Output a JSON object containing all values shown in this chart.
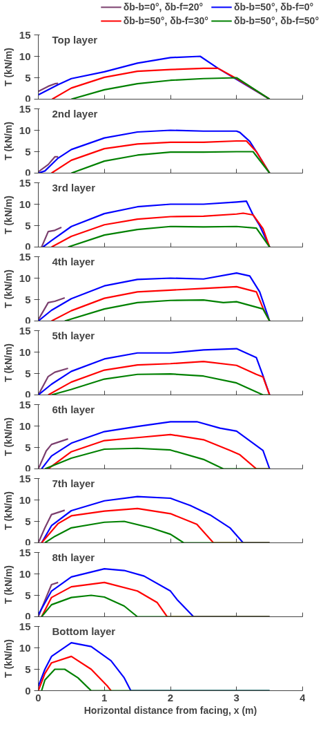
{
  "chart_data": [
    {
      "type": "line",
      "title": "Top layer",
      "ylabel": "T (kN/m)",
      "xlim": [
        0,
        4
      ],
      "ylim": [
        0,
        15
      ],
      "xticks": [
        0,
        1,
        2,
        3,
        4
      ],
      "yticks": [
        0,
        5,
        10,
        15
      ],
      "tick_labels": "y",
      "legend": "top",
      "series": [
        {
          "name": "δb-b=0°, δb-f=20°",
          "color": "#7b3f6e",
          "x": [
            0,
            0.15,
            0.25,
            0.3
          ],
          "values": [
            1.8,
            3,
            3.6,
            3.7
          ]
        },
        {
          "name": "δb-b=50°, δb-f=0°",
          "color": "#0000ff",
          "x": [
            0,
            0.3,
            0.5,
            1,
            1.5,
            2,
            2.45,
            2.72,
            3.5
          ],
          "values": [
            1,
            3.4,
            4.8,
            6.4,
            8.4,
            9.7,
            10,
            7.2,
            0
          ]
        },
        {
          "name": "δb-b=50°, δb-f=30°",
          "color": "#ff0000",
          "x": [
            0.21,
            0.5,
            1,
            1.5,
            2,
            2.5,
            2.72,
            3.0,
            3.5
          ],
          "values": [
            0,
            2.6,
            5.1,
            6.5,
            6.9,
            7.2,
            7.2,
            4.8,
            0
          ]
        },
        {
          "name": "δb-b=50°, δb-f=50°",
          "color": "#008000",
          "x": [
            0.5,
            1,
            1.5,
            2,
            2.5,
            3.0,
            3.5
          ],
          "values": [
            0,
            2.2,
            3.6,
            4.4,
            4.8,
            5,
            0
          ]
        }
      ]
    },
    {
      "type": "line",
      "title": "2nd layer",
      "ylabel": "T (kN/m)",
      "xlim": [
        0,
        4
      ],
      "ylim": [
        0,
        15
      ],
      "xticks": [
        0,
        1,
        2,
        3,
        4
      ],
      "yticks": [
        0,
        5,
        10,
        15
      ],
      "tick_labels": "y",
      "series": [
        {
          "color": "#7b3f6e",
          "x": [
            0,
            0.15,
            0.25,
            0.3
          ],
          "values": [
            0.3,
            2,
            3.8,
            3.8
          ]
        },
        {
          "color": "#0000ff",
          "x": [
            0,
            0.1,
            0.3,
            0.5,
            1,
            1.5,
            2,
            2.5,
            3.0,
            3.05,
            3.2,
            3.3,
            3.5
          ],
          "values": [
            0,
            0.5,
            3.5,
            5.5,
            8.2,
            9.6,
            10,
            9.8,
            9.8,
            9.5,
            7.4,
            5,
            0
          ]
        },
        {
          "color": "#ff0000",
          "x": [
            0.2,
            0.5,
            1,
            1.5,
            2,
            2.5,
            3,
            3.15,
            3.3,
            3.5
          ],
          "values": [
            0,
            3,
            5.7,
            6.8,
            7.2,
            7.2,
            7.5,
            7.5,
            5,
            0
          ]
        },
        {
          "color": "#008000",
          "x": [
            0.5,
            1,
            1.5,
            2,
            2.5,
            3,
            3.25,
            3.5
          ],
          "values": [
            0,
            2.8,
            4.2,
            4.9,
            4.9,
            5,
            5,
            0
          ]
        }
      ]
    },
    {
      "type": "line",
      "title": "3rd layer",
      "ylabel": "T (kN/m)",
      "xlim": [
        0,
        4
      ],
      "ylim": [
        0,
        15
      ],
      "xticks": [
        0,
        1,
        2,
        3,
        4
      ],
      "yticks": [
        0,
        5,
        10,
        15
      ],
      "tick_labels": "y",
      "series": [
        {
          "color": "#7b3f6e",
          "x": [
            0.05,
            0.15,
            0.25,
            0.35
          ],
          "values": [
            0,
            3.6,
            3.9,
            4.6
          ]
        },
        {
          "color": "#0000ff",
          "x": [
            0.07,
            0.2,
            0.5,
            1,
            1.5,
            2,
            2.5,
            3,
            3.15,
            3.25,
            3.35,
            3.5
          ],
          "values": [
            0,
            1.5,
            4.8,
            7.8,
            9.4,
            10,
            10,
            10.5,
            10.7,
            7.5,
            5,
            0
          ]
        },
        {
          "color": "#ff0000",
          "x": [
            0.2,
            0.5,
            1,
            1.5,
            2,
            2.5,
            3,
            3.1,
            3.25,
            3.4,
            3.5
          ],
          "values": [
            0,
            2.5,
            5.2,
            6.5,
            7.1,
            7.2,
            7.7,
            7.9,
            7.5,
            4.3,
            0
          ]
        },
        {
          "color": "#008000",
          "x": [
            0.45,
            1,
            1.5,
            2,
            2.5,
            3,
            3.3,
            3.5
          ],
          "values": [
            0,
            2.8,
            4.1,
            4.8,
            4.7,
            4.8,
            4.4,
            0
          ]
        }
      ]
    },
    {
      "type": "line",
      "title": "4th layer",
      "ylabel": "T (kN/m)",
      "xlim": [
        0,
        4
      ],
      "ylim": [
        0,
        15
      ],
      "xticks": [
        0,
        1,
        2,
        3,
        4
      ],
      "yticks": [
        0,
        5,
        10,
        15
      ],
      "tick_labels": "y",
      "series": [
        {
          "color": "#7b3f6e",
          "x": [
            0,
            0.15,
            0.25,
            0.4
          ],
          "values": [
            0.3,
            4.3,
            4.6,
            5.4
          ]
        },
        {
          "color": "#0000ff",
          "x": [
            0,
            0.2,
            0.5,
            1,
            1.5,
            2,
            2.5,
            3,
            3.2,
            3.35,
            3.5
          ],
          "values": [
            0,
            2.5,
            5.2,
            8.2,
            9.7,
            10,
            9.8,
            11.2,
            10.5,
            6.8,
            0
          ]
        },
        {
          "color": "#ff0000",
          "x": [
            0.2,
            0.5,
            1,
            1.5,
            2,
            2.5,
            3,
            3.3,
            3.4,
            3.5
          ],
          "values": [
            0,
            2.4,
            5.3,
            6.8,
            7.2,
            7.6,
            8,
            6.8,
            3,
            0
          ]
        },
        {
          "color": "#008000",
          "x": [
            0.4,
            1,
            1.5,
            2,
            2.5,
            2.8,
            3,
            3.4,
            3.5
          ],
          "values": [
            0,
            2.8,
            4.3,
            4.8,
            4.9,
            4.3,
            4.5,
            2.8,
            0
          ]
        }
      ]
    },
    {
      "type": "line",
      "title": "5th layer",
      "ylabel": "T (kN/m)",
      "xlim": [
        0,
        4
      ],
      "ylim": [
        0,
        15
      ],
      "xticks": [
        0,
        1,
        2,
        3,
        4
      ],
      "yticks": [
        0,
        5,
        10,
        15
      ],
      "tick_labels": "y",
      "series": [
        {
          "color": "#7b3f6e",
          "x": [
            0,
            0.15,
            0.25,
            0.45
          ],
          "values": [
            0,
            4.3,
            5.3,
            6.2
          ]
        },
        {
          "color": "#0000ff",
          "x": [
            0,
            0.2,
            0.5,
            1,
            1.5,
            2,
            2.5,
            3,
            3.3,
            3.4,
            3.5
          ],
          "values": [
            0,
            2.5,
            5.5,
            8.4,
            9.8,
            9.8,
            10.5,
            10.8,
            8.7,
            4.5,
            0
          ]
        },
        {
          "color": "#ff0000",
          "x": [
            0.15,
            0.5,
            1,
            1.5,
            2,
            2.5,
            3,
            3.3,
            3.4,
            3.5
          ],
          "values": [
            0,
            3,
            5.8,
            7,
            7.3,
            7.8,
            6.9,
            4.8,
            4.2,
            0
          ]
        },
        {
          "color": "#008000",
          "x": [
            0.2,
            0.5,
            1,
            1.5,
            2,
            2.5,
            3,
            3.4,
            3.5
          ],
          "values": [
            0,
            1.3,
            3.7,
            4.8,
            4.9,
            4.4,
            2.8,
            0,
            0
          ]
        }
      ]
    },
    {
      "type": "line",
      "title": "6th layer",
      "ylabel": "T (kN/m)",
      "xlim": [
        0,
        4
      ],
      "ylim": [
        0,
        15
      ],
      "xticks": [
        0,
        1,
        2,
        3,
        4
      ],
      "yticks": [
        0,
        5,
        10,
        15
      ],
      "tick_labels": "y",
      "series": [
        {
          "color": "#7b3f6e",
          "x": [
            0,
            0.12,
            0.2,
            0.45
          ],
          "values": [
            0,
            4.2,
            5.7,
            7
          ]
        },
        {
          "color": "#0000ff",
          "x": [
            0.05,
            0.2,
            0.5,
            1,
            1.5,
            2,
            2.4,
            2.75,
            3,
            3.4,
            3.5
          ],
          "values": [
            0,
            3,
            6,
            8.7,
            9.9,
            11,
            11,
            9.5,
            8.8,
            4.3,
            0
          ]
        },
        {
          "color": "#ff0000",
          "x": [
            0.15,
            0.5,
            1,
            1.5,
            2,
            2.5,
            2.9,
            3.05,
            3.3,
            3.5
          ],
          "values": [
            0,
            4,
            6.6,
            7.3,
            8,
            6.8,
            4.3,
            3.3,
            0,
            0
          ]
        },
        {
          "color": "#008000",
          "x": [
            0.1,
            0.5,
            1,
            1.5,
            2,
            2.5,
            2.8,
            3.5
          ],
          "values": [
            0,
            2.5,
            4.6,
            4.8,
            4.4,
            2.2,
            0,
            0
          ]
        }
      ]
    },
    {
      "type": "line",
      "title": "7th layer",
      "ylabel": "T (kN/m)",
      "xlim": [
        0,
        4
      ],
      "ylim": [
        0,
        15
      ],
      "xticks": [
        0,
        1,
        2,
        3,
        4
      ],
      "yticks": [
        0,
        5,
        10,
        15
      ],
      "tick_labels": "y",
      "series": [
        {
          "color": "#7b3f6e",
          "x": [
            0,
            0.1,
            0.2,
            0.4
          ],
          "values": [
            0,
            3.5,
            6.6,
            7.6
          ]
        },
        {
          "color": "#0000ff",
          "x": [
            0.05,
            0.2,
            0.5,
            1,
            1.5,
            2,
            2.3,
            2.6,
            2.9,
            3.1,
            3.5
          ],
          "values": [
            0,
            4,
            7.5,
            9.8,
            10.8,
            10.4,
            8.7,
            6.5,
            3.5,
            0,
            0
          ]
        },
        {
          "color": "#ff0000",
          "x": [
            0.05,
            0.3,
            0.5,
            1,
            1.5,
            2,
            2.4,
            2.65,
            3.5
          ],
          "values": [
            0,
            4.5,
            6.3,
            7.4,
            8,
            6.8,
            4.3,
            0,
            0
          ]
        },
        {
          "color": "#008000",
          "x": [
            0.1,
            0.25,
            0.5,
            1,
            1.3,
            1.7,
            2,
            2.2,
            3.5
          ],
          "values": [
            0,
            1.5,
            3.5,
            4.8,
            5,
            3.5,
            2,
            0,
            0
          ]
        }
      ]
    },
    {
      "type": "line",
      "title": "8th layer",
      "ylabel": "T (kN/m)",
      "xlim": [
        0,
        4
      ],
      "ylim": [
        0,
        15
      ],
      "xticks": [
        0,
        1,
        2,
        3,
        4
      ],
      "yticks": [
        0,
        5,
        10,
        15
      ],
      "tick_labels": "y",
      "series": [
        {
          "color": "#7b3f6e",
          "x": [
            0,
            0.1,
            0.2,
            0.3
          ],
          "values": [
            0,
            3.8,
            7.5,
            8
          ]
        },
        {
          "color": "#0000ff",
          "x": [
            0,
            0.2,
            0.5,
            1,
            1.3,
            1.6,
            2,
            2.1,
            2.35,
            3.5
          ],
          "values": [
            0.5,
            6,
            9.3,
            11.2,
            10.8,
            9.5,
            6,
            4,
            0,
            0
          ]
        },
        {
          "color": "#ff0000",
          "x": [
            0.05,
            0.2,
            0.5,
            1,
            1.5,
            1.8,
            1.95,
            3.5
          ],
          "values": [
            0,
            4.5,
            7,
            8,
            6,
            3.3,
            0,
            0
          ]
        },
        {
          "color": "#008000",
          "x": [
            0.05,
            0.2,
            0.5,
            0.8,
            1,
            1.3,
            1.5,
            3.5
          ],
          "values": [
            0,
            2.8,
            4.5,
            5,
            4.6,
            2.5,
            0,
            0
          ]
        }
      ]
    },
    {
      "type": "line",
      "title": "Bottom layer",
      "xlabel": "Horizontal distance from facing, x (m)",
      "ylabel": "T (kN/m)",
      "xlim": [
        0,
        4
      ],
      "ylim": [
        0,
        15
      ],
      "xticks": [
        0,
        1,
        2,
        3,
        4
      ],
      "yticks": [
        0,
        5,
        10,
        15
      ],
      "series": [
        {
          "color": "#0000ff",
          "x": [
            0,
            0.1,
            0.2,
            0.5,
            0.8,
            1.1,
            1.3,
            1.4,
            3.5
          ],
          "values": [
            1,
            5,
            8,
            11.2,
            10.3,
            7,
            3,
            0,
            0
          ]
        },
        {
          "color": "#ff0000",
          "x": [
            0,
            0.1,
            0.2,
            0.5,
            0.8,
            1.05,
            1.1
          ],
          "values": [
            0,
            4,
            6.5,
            8,
            5,
            1,
            0
          ]
        },
        {
          "color": "#008000",
          "x": [
            0.05,
            0.1,
            0.25,
            0.4,
            0.6,
            0.8,
            3.5
          ],
          "values": [
            0,
            2.5,
            5,
            5,
            3,
            0,
            0
          ]
        }
      ]
    }
  ]
}
